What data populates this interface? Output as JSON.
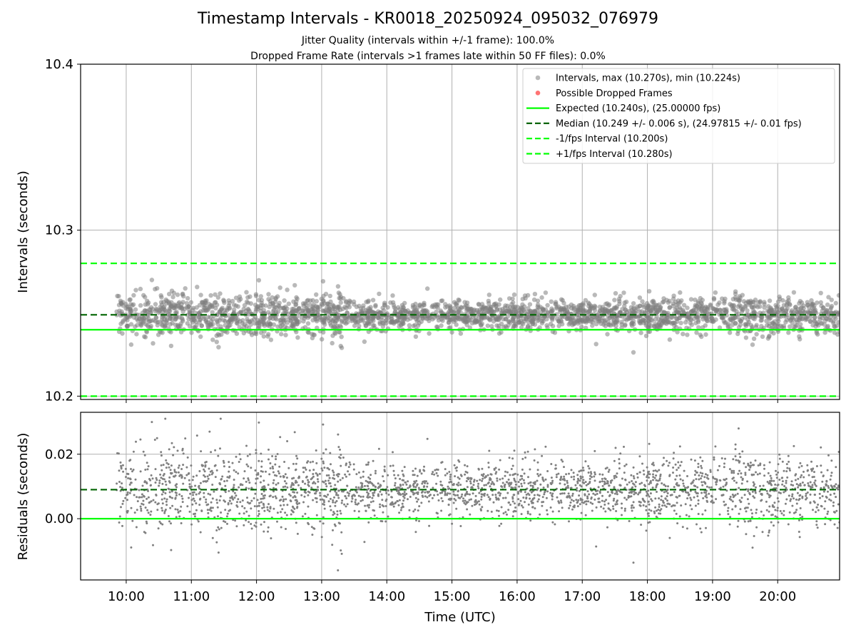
{
  "title": "Timestamp Intervals - KR0018_20250924_095032_076979",
  "subtitle_jitter": "Jitter Quality (intervals within +/-1 frame): 100.0%",
  "subtitle_dropped": "Dropped Frame Rate (intervals >1 frames late within 50 FF files): 0.0%",
  "colors": {
    "points": "#808080",
    "dropped": "#ff0000",
    "expected": "#00ff00",
    "median": "#006400",
    "limit": "#00ff00"
  },
  "chart_data": [
    {
      "type": "scatter",
      "panel": "top",
      "ylabel": "Intervals (seconds)",
      "ylim": [
        10.198,
        10.4
      ],
      "yticks": [
        10.2,
        10.3,
        10.4
      ],
      "ytick_labels": [
        "10.2",
        "10.3",
        "10.4"
      ],
      "xlim": [
        9.3,
        20.95
      ],
      "x_start": 9.85,
      "x_end": 20.95,
      "grid": true,
      "legend_position": "top-right",
      "series": [
        {
          "name": "Intervals, max (10.270s), min (10.224s)",
          "kind": "scatter",
          "max": 10.27,
          "min": 10.224,
          "center": 10.249,
          "spread": 0.006
        },
        {
          "name": "Possible Dropped Frames",
          "kind": "scatter",
          "values": []
        },
        {
          "name": "Expected (10.240s), (25.00000 fps)",
          "kind": "hline",
          "y": 10.24,
          "style": "solid"
        },
        {
          "name": "Median (10.249 +/- 0.006 s), (24.97815 +/- 0.01 fps)",
          "kind": "hline",
          "y": 10.249,
          "style": "dashed"
        },
        {
          "name": "-1/fps Interval (10.200s)",
          "kind": "hline",
          "y": 10.2,
          "style": "dashed"
        },
        {
          "name": "+1/fps Interval (10.280s)",
          "kind": "hline",
          "y": 10.28,
          "style": "dashed"
        }
      ]
    },
    {
      "type": "scatter",
      "panel": "bottom",
      "ylabel": "Residuals (seconds)",
      "xlabel": "Time (UTC)",
      "ylim": [
        -0.019,
        0.033
      ],
      "yticks": [
        0.0,
        0.02
      ],
      "ytick_labels": [
        "0.00",
        "0.02"
      ],
      "xlim": [
        9.3,
        20.95
      ],
      "xticks": [
        10,
        11,
        12,
        13,
        14,
        15,
        16,
        17,
        18,
        19,
        20
      ],
      "xtick_labels": [
        "10:00",
        "11:00",
        "12:00",
        "13:00",
        "14:00",
        "15:00",
        "16:00",
        "17:00",
        "18:00",
        "19:00",
        "20:00"
      ],
      "grid": true,
      "series": [
        {
          "name": "Residuals",
          "kind": "scatter",
          "center": 0.009,
          "spread": 0.006,
          "max": 0.031,
          "min": -0.016
        },
        {
          "name": "Expected",
          "kind": "hline",
          "y": 0.0,
          "style": "solid"
        },
        {
          "name": "Median",
          "kind": "hline",
          "y": 0.009,
          "style": "dashed"
        }
      ]
    }
  ]
}
